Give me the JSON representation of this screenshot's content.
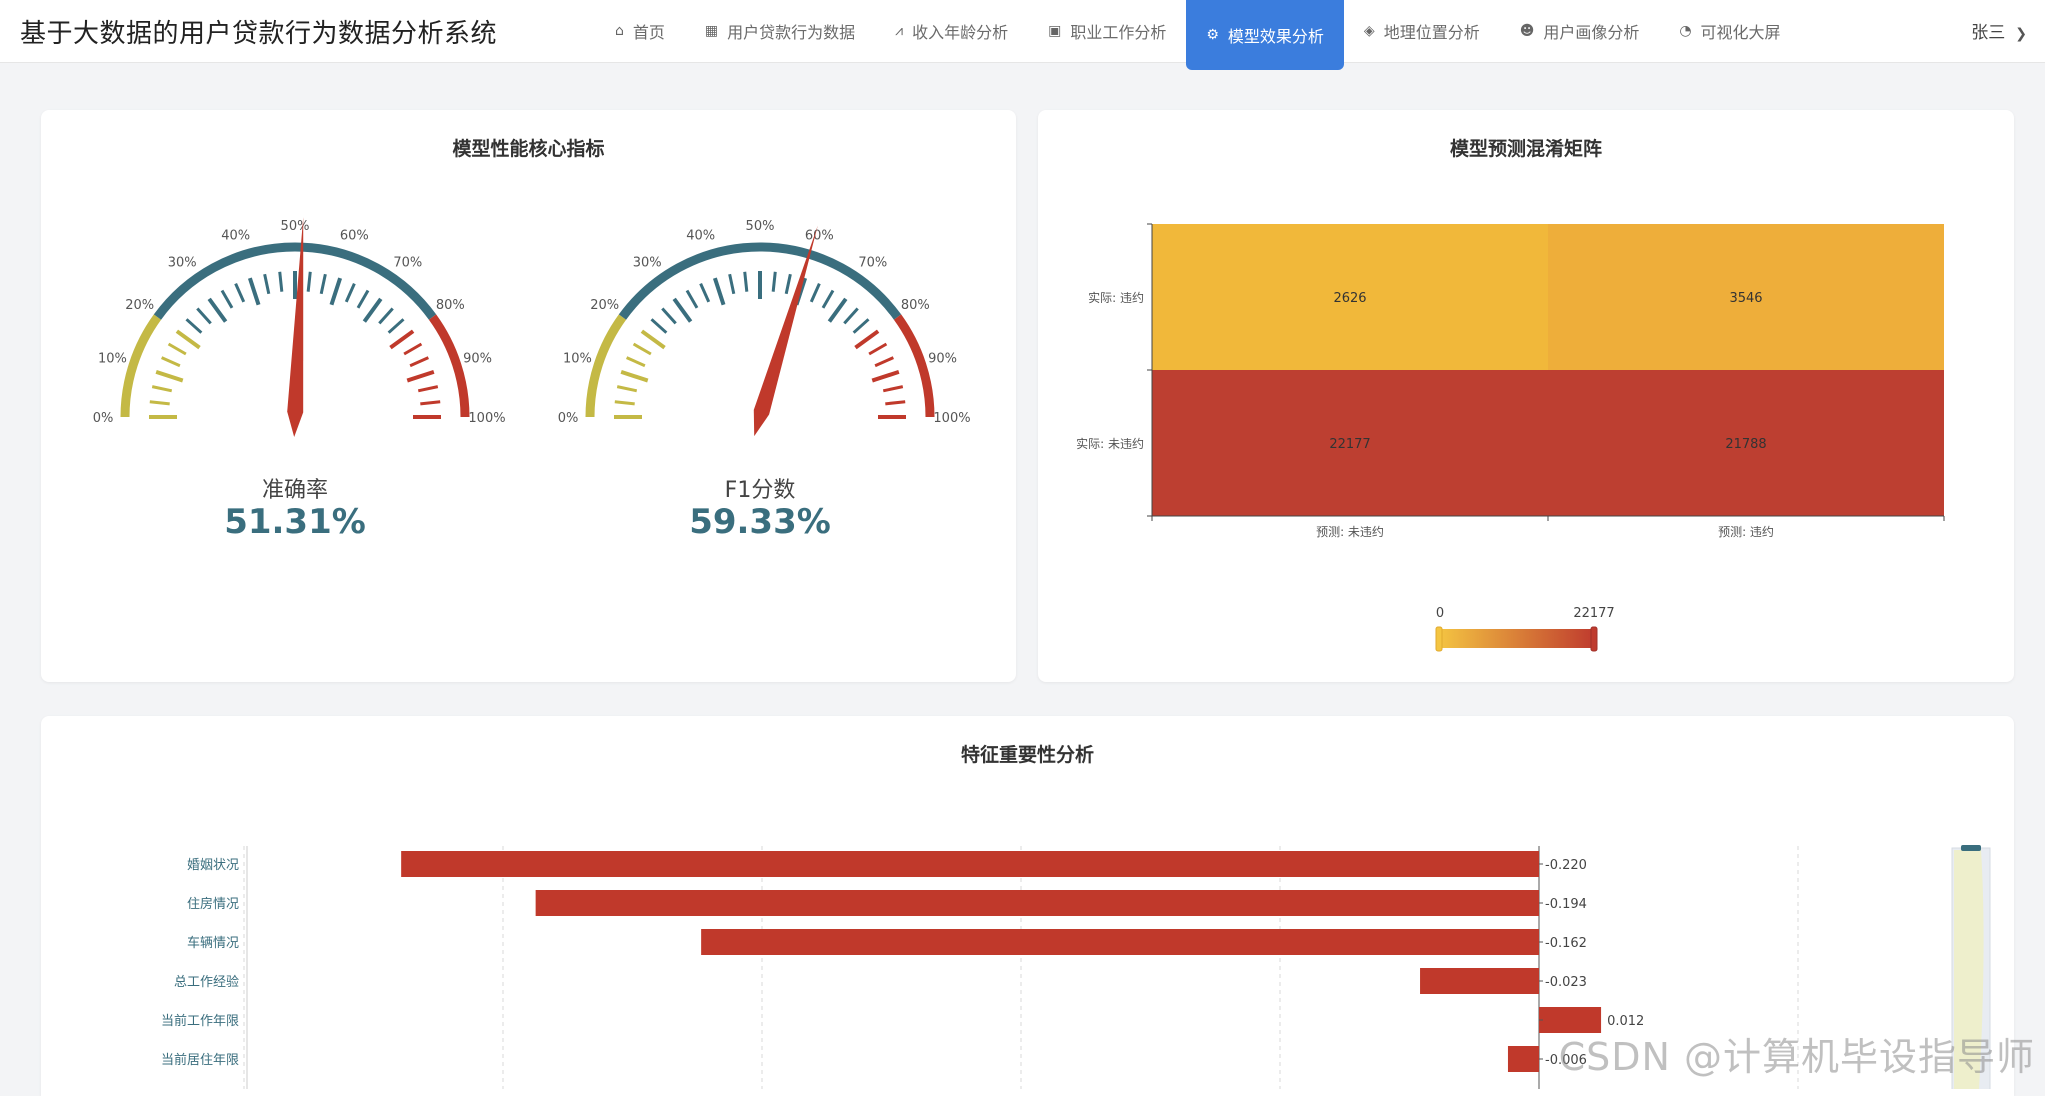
{
  "app": {
    "title": "基于大数据的用户贷款行为数据分析系统"
  },
  "nav": [
    {
      "icon": "home-icon",
      "glyph": "⌂",
      "label": "首页"
    },
    {
      "icon": "table-icon",
      "glyph": "▦",
      "label": "用户贷款行为数据"
    },
    {
      "icon": "line-chart-icon",
      "glyph": "⩘",
      "label": "收入年龄分析"
    },
    {
      "icon": "briefcase-icon",
      "glyph": "▣",
      "label": "职业工作分析"
    },
    {
      "icon": "cogs-icon",
      "glyph": "⚙",
      "label": "模型效果分析",
      "active": true
    },
    {
      "icon": "map-icon",
      "glyph": "◈",
      "label": "地理位置分析"
    },
    {
      "icon": "users-icon",
      "glyph": "☻",
      "label": "用户画像分析"
    },
    {
      "icon": "pie-chart-icon",
      "glyph": "◔",
      "label": "可视化大屏"
    }
  ],
  "user": {
    "name": "张三",
    "caret": "❯"
  },
  "gauges_panel": {
    "title": "模型性能核心指标",
    "gauges": [
      {
        "label": "准确率",
        "value": 51.31,
        "value_text": "51.31%"
      },
      {
        "label": "F1分数",
        "value": 59.33,
        "value_text": "59.33%"
      }
    ],
    "tick_labels": [
      "0%",
      "10%",
      "20%",
      "30%",
      "40%",
      "50%",
      "60%",
      "70%",
      "80%",
      "90%",
      "100%"
    ]
  },
  "confusion_panel": {
    "title": "模型预测混淆矩阵",
    "row_labels": [
      "实际: 违约",
      "实际: 未违约"
    ],
    "col_labels": [
      "预测: 未违约",
      "预测: 违约"
    ],
    "values": [
      [
        2626,
        3546
      ],
      [
        22177,
        21788
      ]
    ],
    "visual_map": {
      "min_label": "0",
      "max_label": "22177",
      "min": 0,
      "max": 22177
    }
  },
  "feature_panel": {
    "title": "特征重要性分析",
    "features": [
      {
        "name": "婚姻状况",
        "value": -0.22,
        "value_text": "-0.220"
      },
      {
        "name": "住房情况",
        "value": -0.194,
        "value_text": "-0.194"
      },
      {
        "name": "车辆情况",
        "value": -0.162,
        "value_text": "-0.162"
      },
      {
        "name": "总工作经验",
        "value": -0.023,
        "value_text": "-0.023"
      },
      {
        "name": "当前工作年限",
        "value": 0.012,
        "value_text": "0.012"
      },
      {
        "name": "当前居住年限",
        "value": -0.006,
        "value_text": "-0.006"
      }
    ]
  },
  "colors": {
    "accent": "#3b7ddd",
    "gauge_low": "#c4b945",
    "gauge_mid": "#3a6e7e",
    "gauge_high": "#c0392b",
    "bar": "#c0392b",
    "heat_low": "#f4c542",
    "heat_high": "#bf3b2e"
  },
  "watermark": "CSDN @计算机毕设指导师"
}
